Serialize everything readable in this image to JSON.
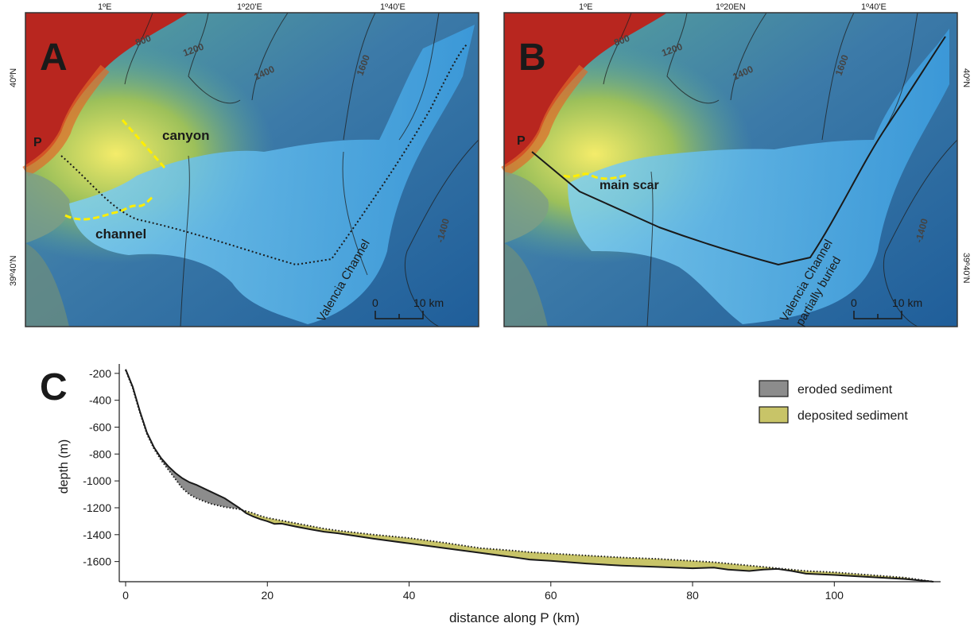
{
  "panels": {
    "A": {
      "letter": "A",
      "lon_ticks": [
        "1ºE",
        "1º20'E",
        "1º40'E"
      ],
      "lat_ticks": [
        "40ºN",
        "39º40'N"
      ],
      "contours": [
        "800",
        "1200",
        "1400",
        "1600",
        "-1400"
      ],
      "labels": {
        "canyon": "canyon",
        "channel": "channel",
        "valencia": "Valencia Channel",
        "p": "P"
      },
      "scale": {
        "zero": "0",
        "ten": "10 km"
      }
    },
    "B": {
      "letter": "B",
      "lon_ticks": [
        "1ºE",
        "1º20EN",
        "1º40'E"
      ],
      "lat_ticks": [
        "40ºN",
        "39º40'N"
      ],
      "contours": [
        "800",
        "1200",
        "1400",
        "1600",
        "-1400"
      ],
      "labels": {
        "main_scar": "main scar",
        "valencia": "Valencia Channel",
        "valencia2": "partially buried",
        "p": "P"
      },
      "scale": {
        "zero": "0",
        "ten": "10 km"
      }
    }
  },
  "colors": {
    "deep": "#1f5e9a",
    "shelf": "#b8261f",
    "deposit_blue": "#56b8ee",
    "eroded": "#8c8c8c",
    "deposited": "#c8c468",
    "highlight": "#ffee00"
  },
  "chart_data": {
    "type": "area",
    "panel_letter": "C",
    "xlabel": "distance along P (km)",
    "ylabel": "depth (m)",
    "xlim": [
      0,
      115
    ],
    "ylim": [
      -1750,
      -130
    ],
    "xticks": [
      0,
      20,
      40,
      60,
      80,
      100
    ],
    "yticks": [
      -200,
      -400,
      -600,
      -800,
      -1000,
      -1200,
      -1400,
      -1600
    ],
    "legend_position": "top-right",
    "legend": [
      {
        "label": "eroded sediment",
        "color": "#8c8c8c"
      },
      {
        "label": "deposited sediment",
        "color": "#c8c468"
      }
    ],
    "series": [
      {
        "name": "solid",
        "x": [
          0,
          1,
          2,
          3,
          4,
          5,
          6,
          7,
          8,
          9,
          10,
          12,
          14,
          16,
          17,
          18,
          19,
          20,
          21,
          22,
          24,
          26,
          28,
          30,
          35,
          40,
          45,
          50,
          55,
          57,
          60,
          65,
          70,
          75,
          80,
          83,
          85,
          88,
          90,
          92,
          94,
          96,
          100,
          105,
          110,
          114
        ],
        "y": [
          -170,
          -300,
          -480,
          -640,
          -750,
          -830,
          -890,
          -940,
          -980,
          -1010,
          -1030,
          -1080,
          -1130,
          -1200,
          -1240,
          -1265,
          -1285,
          -1300,
          -1320,
          -1318,
          -1340,
          -1360,
          -1378,
          -1390,
          -1430,
          -1465,
          -1500,
          -1535,
          -1570,
          -1585,
          -1595,
          -1615,
          -1630,
          -1640,
          -1650,
          -1645,
          -1660,
          -1670,
          -1660,
          -1655,
          -1670,
          -1690,
          -1700,
          -1715,
          -1730,
          -1750
        ]
      },
      {
        "name": "dotted",
        "x": [
          0,
          1,
          2,
          3,
          4,
          5,
          6,
          7,
          8,
          9,
          10,
          12,
          14,
          16,
          17,
          18,
          19,
          20,
          21,
          22,
          24,
          26,
          28,
          30,
          35,
          40,
          45,
          50,
          55,
          57,
          60,
          65,
          70,
          75,
          80,
          83,
          85,
          88,
          90,
          92,
          94,
          96,
          100,
          105,
          110,
          114
        ],
        "y": [
          -175,
          -310,
          -490,
          -650,
          -760,
          -845,
          -915,
          -985,
          -1055,
          -1100,
          -1130,
          -1170,
          -1195,
          -1210,
          -1225,
          -1240,
          -1260,
          -1275,
          -1285,
          -1295,
          -1315,
          -1335,
          -1355,
          -1370,
          -1400,
          -1425,
          -1460,
          -1500,
          -1520,
          -1530,
          -1540,
          -1555,
          -1570,
          -1580,
          -1595,
          -1605,
          -1615,
          -1630,
          -1640,
          -1650,
          -1660,
          -1670,
          -1680,
          -1700,
          -1720,
          -1750
        ]
      }
    ]
  }
}
